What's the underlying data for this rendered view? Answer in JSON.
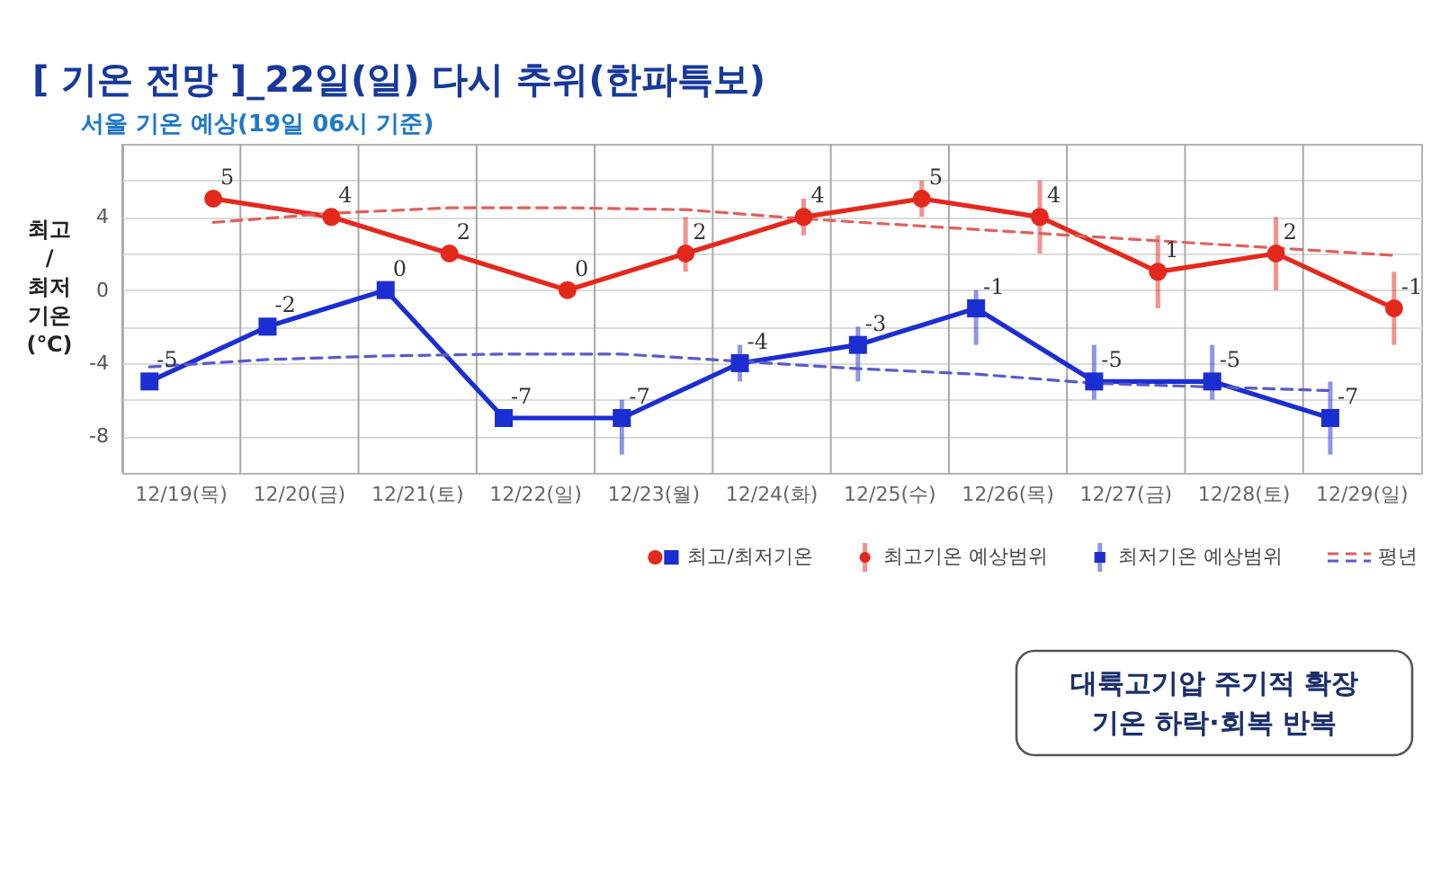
{
  "chart_data": {
    "type": "line",
    "title": "[ 기온 전망 ]_22일(일) 다시 추위(한파특보)",
    "subtitle": "서울 기온 예상(19일 06시 기준)",
    "ylabel": "최고 / 최저 기온 (℃)",
    "categories": [
      "12/19(목)",
      "12/20(금)",
      "12/21(토)",
      "12/22(일)",
      "12/23(월)",
      "12/24(화)",
      "12/25(수)",
      "12/26(목)",
      "12/27(금)",
      "12/28(토)",
      "12/29(일)"
    ],
    "series": [
      {
        "color": "#e5281c",
        "marker": "circle",
        "values": [
          5,
          4,
          2,
          0,
          2,
          4,
          5,
          4,
          1,
          2,
          -1
        ],
        "value_labels": [
          "5",
          "4",
          "2",
          "0",
          "2",
          "4",
          "5",
          "4",
          "1",
          "2",
          "-1"
        ],
        "errors": [
          null,
          null,
          null,
          null,
          [
            1,
            4
          ],
          [
            3,
            5
          ],
          [
            4,
            6
          ],
          [
            2,
            6
          ],
          [
            -1,
            3
          ],
          [
            0,
            4
          ],
          [
            -3,
            1
          ]
        ]
      },
      {
        "name": "최고/최저기온",
        "color": "#1b2ed2",
        "marker": "square",
        "values": [
          -5,
          -2,
          0,
          -7,
          -7,
          -4,
          -3,
          -1,
          -5,
          -5,
          -7
        ],
        "value_labels": [
          "-5",
          "-2",
          "0",
          "-7",
          "-7",
          "-4",
          "-3",
          "-1",
          "-5",
          "-5",
          "-7"
        ],
        "errors": [
          null,
          null,
          null,
          null,
          [
            -9,
            -6
          ],
          [
            -5,
            -3
          ],
          [
            -5,
            -2
          ],
          [
            -3,
            0
          ],
          [
            -6,
            -3
          ],
          [
            -6,
            -3
          ],
          [
            -9,
            -5
          ]
        ]
      },
      {
        "name": "평년",
        "color": "#e0605c",
        "marker": "none",
        "line_style": "dashed",
        "values": [
          3.7,
          4.2,
          4.5,
          4.5,
          4.4,
          3.9,
          3.5,
          3.1,
          2.7,
          2.3,
          1.9
        ]
      },
      {
        "color": "#5a5acc",
        "marker": "none",
        "line_style": "dashed",
        "values": [
          -4.2,
          -3.8,
          -3.6,
          -3.5,
          -3.5,
          -3.9,
          -4.3,
          -4.6,
          -5.1,
          -5.3,
          -5.5
        ]
      }
    ],
    "ylim": [
      -10,
      8
    ],
    "yticks": [
      -8,
      {
        "value": -6,
        "label": null
      },
      -4,
      {
        "value": -2,
        "label": null
      },
      0,
      {
        "value": 2,
        "label": null
      },
      4,
      {
        "value": 6,
        "label": null
      }
    ],
    "grid": true,
    "legend": "bottom right",
    "annotations": [
      "최고기온 예상범위",
      "최저기온 예상범위",
      "대륙고기압 주기적 확장\n기온 하락·회복 반복"
    ]
  }
}
